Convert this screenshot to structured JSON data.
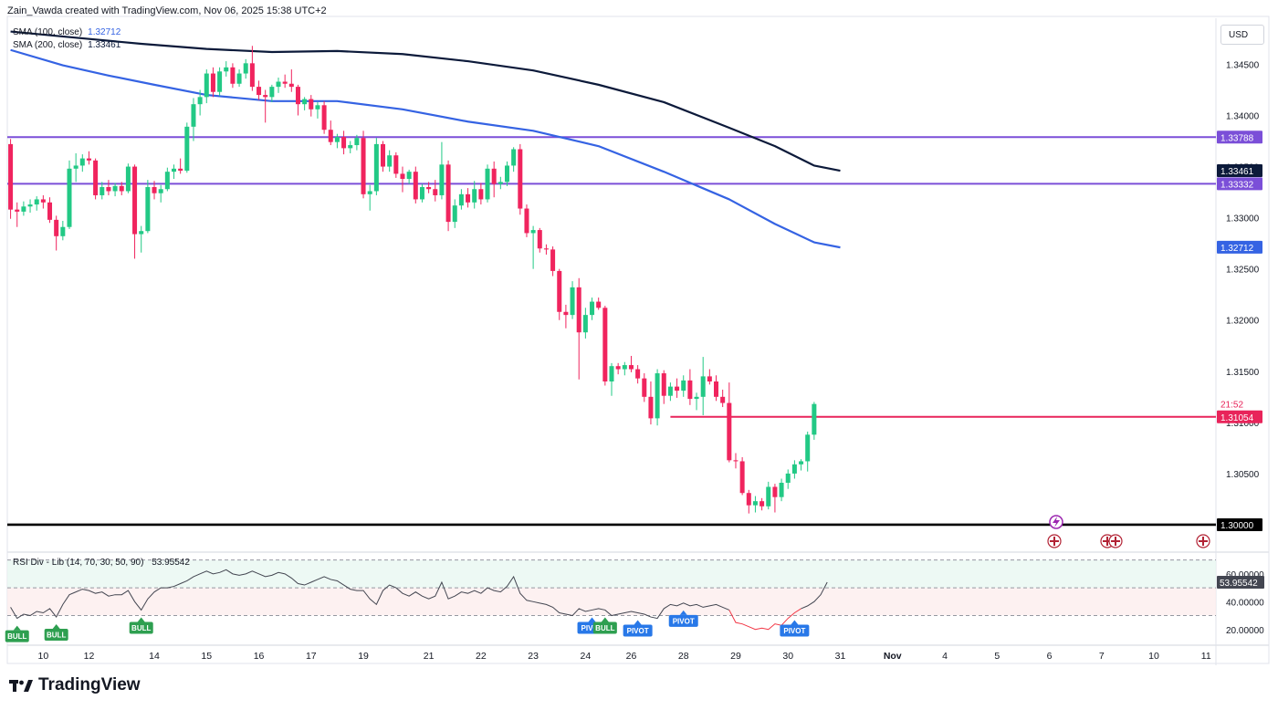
{
  "header": {
    "title": "Zain_Vawda created with TradingView.com, Nov 06, 2025 15:38 UTC+2"
  },
  "legend": {
    "sma100": {
      "label": "SMA (100, close)",
      "value": "1.32712"
    },
    "sma200": {
      "label": "SMA (200, close)",
      "value": "1.33461"
    },
    "rsi": {
      "label": "RSI Div - Lib (14, 70, 30, 50, 90)",
      "value": "53.95542"
    }
  },
  "currency": "USD",
  "logo": {
    "text": "TradingView"
  },
  "colors": {
    "up": "#22c985",
    "down": "#f0245e",
    "sma100": "#3563e3",
    "sma200": "#0c1a3a",
    "resistance": "#7b4fd8",
    "support": "#000000",
    "current_level": "#e8245a",
    "rsi_line": "#434651",
    "rsi_bear": "#f23645",
    "bull_label": "#2e9f50",
    "pivot_label": "#2878e8"
  },
  "chart_data": [
    {
      "type": "candlestick",
      "title": "GBP/USD",
      "ylim": [
        1.2975,
        1.3495
      ],
      "y_ticks": [
        "1.34500",
        "1.34000",
        "1.33500",
        "1.33000",
        "1.32500",
        "1.32000",
        "1.31500",
        "1.31000",
        "1.30500",
        "1.30000"
      ],
      "y_tick_values": [
        1.345,
        1.34,
        1.335,
        1.33,
        1.325,
        1.32,
        1.315,
        1.31,
        1.305,
        1.3
      ],
      "x_ticks": [
        "10",
        "12",
        "14",
        "15",
        "16",
        "17",
        "19",
        "21",
        "22",
        "23",
        "24",
        "26",
        "28",
        "29",
        "30",
        "31",
        "Nov",
        "4",
        "5",
        "6",
        "7",
        "10",
        "11"
      ],
      "x_tick_index": [
        5,
        12,
        22,
        30,
        38,
        46,
        54,
        64,
        72,
        80,
        88,
        95,
        103,
        111,
        119,
        127,
        135,
        143,
        151,
        159,
        167,
        175,
        183
      ],
      "bars_visible": 163,
      "x_slots": 185,
      "candles": [
        [
          1.3372,
          1.3377,
          1.3299,
          1.3308
        ],
        [
          1.3308,
          1.3315,
          1.3291,
          1.3306
        ],
        [
          1.3306,
          1.3316,
          1.3302,
          1.3311
        ],
        [
          1.3311,
          1.3318,
          1.3305,
          1.3313
        ],
        [
          1.3313,
          1.3321,
          1.3307,
          1.3318
        ],
        [
          1.3318,
          1.3322,
          1.3309,
          1.3315
        ],
        [
          1.3315,
          1.332,
          1.3295,
          1.3298
        ],
        [
          1.3298,
          1.3302,
          1.3268,
          1.3282
        ],
        [
          1.3282,
          1.3297,
          1.3278,
          1.3291
        ],
        [
          1.3291,
          1.3356,
          1.3289,
          1.3348
        ],
        [
          1.3348,
          1.3363,
          1.3335,
          1.3351
        ],
        [
          1.3351,
          1.3362,
          1.3345,
          1.3358
        ],
        [
          1.3358,
          1.3365,
          1.3352,
          1.3356
        ],
        [
          1.3356,
          1.3358,
          1.3318,
          1.3322
        ],
        [
          1.3322,
          1.3335,
          1.3318,
          1.333
        ],
        [
          1.333,
          1.3337,
          1.3322,
          1.3326
        ],
        [
          1.3326,
          1.3334,
          1.3321,
          1.3331
        ],
        [
          1.3331,
          1.3335,
          1.3322,
          1.3326
        ],
        [
          1.3326,
          1.3353,
          1.3324,
          1.335
        ],
        [
          1.335,
          1.3352,
          1.326,
          1.3284
        ],
        [
          1.3284,
          1.3292,
          1.3266,
          1.3287
        ],
        [
          1.3287,
          1.3337,
          1.3285,
          1.333
        ],
        [
          1.333,
          1.3336,
          1.3318,
          1.3324
        ],
        [
          1.3324,
          1.3332,
          1.3315,
          1.3328
        ],
        [
          1.3328,
          1.3349,
          1.3326,
          1.3345
        ],
        [
          1.3345,
          1.3352,
          1.3338,
          1.3348
        ],
        [
          1.3348,
          1.3358,
          1.3343,
          1.3346
        ],
        [
          1.3346,
          1.3393,
          1.3344,
          1.3389
        ],
        [
          1.3389,
          1.3417,
          1.3375,
          1.3411
        ],
        [
          1.3411,
          1.3425,
          1.34,
          1.3418
        ],
        [
          1.3418,
          1.3445,
          1.3412,
          1.3441
        ],
        [
          1.3441,
          1.3447,
          1.3418,
          1.3423
        ],
        [
          1.3423,
          1.3447,
          1.3419,
          1.3443
        ],
        [
          1.3443,
          1.3453,
          1.3438,
          1.3447
        ],
        [
          1.3447,
          1.3451,
          1.3427,
          1.3431
        ],
        [
          1.3431,
          1.3445,
          1.3428,
          1.3441
        ],
        [
          1.3441,
          1.3455,
          1.3436,
          1.3451
        ],
        [
          1.3451,
          1.3468,
          1.3424,
          1.3428
        ],
        [
          1.3428,
          1.3434,
          1.3415,
          1.342
        ],
        [
          1.342,
          1.3425,
          1.3393,
          1.3418
        ],
        [
          1.3418,
          1.343,
          1.3413,
          1.3428
        ],
        [
          1.3428,
          1.3437,
          1.3422,
          1.3433
        ],
        [
          1.3433,
          1.344,
          1.3427,
          1.3431
        ],
        [
          1.3431,
          1.3445,
          1.3423,
          1.3428
        ],
        [
          1.3428,
          1.343,
          1.34,
          1.3411
        ],
        [
          1.3411,
          1.3418,
          1.3405,
          1.3416
        ],
        [
          1.3416,
          1.342,
          1.3399,
          1.3406
        ],
        [
          1.3406,
          1.3413,
          1.3397,
          1.341
        ],
        [
          1.341,
          1.3414,
          1.3382,
          1.3386
        ],
        [
          1.3386,
          1.3395,
          1.3371,
          1.3374
        ],
        [
          1.3374,
          1.3382,
          1.3368,
          1.3379
        ],
        [
          1.3379,
          1.3385,
          1.3362,
          1.3368
        ],
        [
          1.3368,
          1.3375,
          1.3363,
          1.3371
        ],
        [
          1.3371,
          1.3381,
          1.3366,
          1.3378
        ],
        [
          1.3378,
          1.3385,
          1.3319,
          1.3323
        ],
        [
          1.3323,
          1.3332,
          1.3307,
          1.3326
        ],
        [
          1.3326,
          1.3378,
          1.3322,
          1.3372
        ],
        [
          1.3372,
          1.3375,
          1.3345,
          1.335
        ],
        [
          1.335,
          1.3366,
          1.3345,
          1.3361
        ],
        [
          1.3361,
          1.3364,
          1.3339,
          1.3343
        ],
        [
          1.3343,
          1.335,
          1.3325,
          1.3338
        ],
        [
          1.3338,
          1.3347,
          1.3333,
          1.3345
        ],
        [
          1.3345,
          1.335,
          1.3314,
          1.3318
        ],
        [
          1.3318,
          1.3333,
          1.3315,
          1.333
        ],
        [
          1.333,
          1.3335,
          1.3324,
          1.3328
        ],
        [
          1.3328,
          1.3337,
          1.3316,
          1.3322
        ],
        [
          1.3322,
          1.3374,
          1.3318,
          1.3352
        ],
        [
          1.3352,
          1.3356,
          1.3287,
          1.3296
        ],
        [
          1.3296,
          1.3318,
          1.329,
          1.3312
        ],
        [
          1.3312,
          1.3328,
          1.3308,
          1.3323
        ],
        [
          1.3323,
          1.3329,
          1.331,
          1.3315
        ],
        [
          1.3315,
          1.3336,
          1.3309,
          1.3328
        ],
        [
          1.3328,
          1.3334,
          1.3313,
          1.3318
        ],
        [
          1.3318,
          1.3352,
          1.3315,
          1.3348
        ],
        [
          1.3348,
          1.3355,
          1.332,
          1.3333
        ],
        [
          1.3333,
          1.334,
          1.3328,
          1.3335
        ],
        [
          1.3335,
          1.3355,
          1.3331,
          1.3351
        ],
        [
          1.3351,
          1.3369,
          1.3345,
          1.3367
        ],
        [
          1.3367,
          1.3372,
          1.3303,
          1.3309
        ],
        [
          1.3309,
          1.3313,
          1.3281,
          1.3285
        ],
        [
          1.3285,
          1.3292,
          1.325,
          1.3288
        ],
        [
          1.3288,
          1.329,
          1.3266,
          1.327
        ],
        [
          1.327,
          1.3274,
          1.3264,
          1.3269
        ],
        [
          1.3269,
          1.3272,
          1.3243,
          1.3248
        ],
        [
          1.3248,
          1.325,
          1.32,
          1.3208
        ],
        [
          1.3208,
          1.3215,
          1.3192,
          1.3205
        ],
        [
          1.3205,
          1.3238,
          1.3201,
          1.3232
        ],
        [
          1.3232,
          1.3241,
          1.3142,
          1.3188
        ],
        [
          1.3188,
          1.3212,
          1.3182,
          1.3205
        ],
        [
          1.3205,
          1.3222,
          1.32,
          1.3218
        ],
        [
          1.3218,
          1.3222,
          1.321,
          1.3212
        ],
        [
          1.3212,
          1.3214,
          1.3136,
          1.314
        ],
        [
          1.314,
          1.3158,
          1.3126,
          1.3155
        ],
        [
          1.3155,
          1.3158,
          1.3147,
          1.3152
        ],
        [
          1.3152,
          1.3159,
          1.3146,
          1.3156
        ],
        [
          1.3156,
          1.3165,
          1.3149,
          1.3152
        ],
        [
          1.3152,
          1.3156,
          1.3138,
          1.3143
        ],
        [
          1.3143,
          1.3148,
          1.312,
          1.3125
        ],
        [
          1.3125,
          1.314,
          1.3098,
          1.3104
        ],
        [
          1.3104,
          1.3152,
          1.3097,
          1.3148
        ],
        [
          1.3148,
          1.3151,
          1.3118,
          1.3126
        ],
        [
          1.3126,
          1.3139,
          1.3121,
          1.3135
        ],
        [
          1.3135,
          1.3143,
          1.3124,
          1.3131
        ],
        [
          1.3131,
          1.3146,
          1.3125,
          1.3141
        ],
        [
          1.3141,
          1.3152,
          1.3117,
          1.3123
        ],
        [
          1.3123,
          1.3129,
          1.3112,
          1.3125
        ],
        [
          1.3125,
          1.3164,
          1.3107,
          1.3145
        ],
        [
          1.3145,
          1.3152,
          1.3137,
          1.314
        ],
        [
          1.314,
          1.3146,
          1.3121,
          1.3125
        ],
        [
          1.3125,
          1.3132,
          1.3115,
          1.3119
        ],
        [
          1.3119,
          1.3139,
          1.3061,
          1.3063
        ],
        [
          1.3063,
          1.307,
          1.3055,
          1.3062
        ],
        [
          1.3062,
          1.3066,
          1.3029,
          1.3031
        ],
        [
          1.3031,
          1.3034,
          1.3011,
          1.3019
        ],
        [
          1.3019,
          1.3028,
          1.3012,
          1.3023
        ],
        [
          1.3023,
          1.3026,
          1.3014,
          1.3018
        ],
        [
          1.3018,
          1.3042,
          1.3015,
          1.3037
        ],
        [
          1.3037,
          1.304,
          1.3012,
          1.3027
        ],
        [
          1.3027,
          1.3045,
          1.3023,
          1.3041
        ],
        [
          1.3041,
          1.3054,
          1.3035,
          1.305
        ],
        [
          1.305,
          1.3063,
          1.3045,
          1.3059
        ],
        [
          1.3059,
          1.3064,
          1.3053,
          1.3062
        ],
        [
          1.3062,
          1.3091,
          1.3052,
          1.3088
        ],
        [
          1.3088,
          1.312,
          1.3083,
          1.3118
        ]
      ],
      "overlays": {
        "sma200": {
          "name": "SMA (200, close)",
          "points": [
            [
              0,
              1.3482
            ],
            [
              10,
              1.3476
            ],
            [
              20,
              1.347
            ],
            [
              30,
              1.3465
            ],
            [
              40,
              1.3462
            ],
            [
              50,
              1.3463
            ],
            [
              60,
              1.346
            ],
            [
              70,
              1.3453
            ],
            [
              80,
              1.3444
            ],
            [
              90,
              1.343
            ],
            [
              100,
              1.3413
            ],
            [
              110,
              1.3388
            ],
            [
              117,
              1.337
            ],
            [
              123,
              1.3351
            ],
            [
              127,
              1.3346
            ]
          ]
        },
        "sma100": {
          "name": "SMA (100, close)",
          "points": [
            [
              0,
              1.3464
            ],
            [
              8,
              1.3449
            ],
            [
              15,
              1.3439
            ],
            [
              22,
              1.343
            ],
            [
              30,
              1.342
            ],
            [
              40,
              1.3414
            ],
            [
              50,
              1.3414
            ],
            [
              60,
              1.3406
            ],
            [
              70,
              1.3394
            ],
            [
              80,
              1.3385
            ],
            [
              90,
              1.337
            ],
            [
              100,
              1.3345
            ],
            [
              110,
              1.3318
            ],
            [
              117,
              1.3294
            ],
            [
              123,
              1.3276
            ],
            [
              127,
              1.3271
            ]
          ]
        },
        "lines": [
          {
            "name": "resistance-upper",
            "value": 1.33788,
            "label": "1.33788"
          },
          {
            "name": "resistance-lower",
            "value": 1.33332,
            "label": "1.33332"
          },
          {
            "name": "support",
            "value": 1.3,
            "label": "1.30000"
          },
          {
            "name": "current-level",
            "value": 1.31054,
            "label": "1.31054",
            "from_index": 101
          }
        ]
      },
      "price_labels": [
        {
          "name": "sma200-price-label",
          "value": 1.33461,
          "text": "1.33461"
        },
        {
          "name": "sma100-price-label",
          "value": 1.32712,
          "text": "1.32712"
        },
        {
          "name": "countdown-label",
          "value": 1.3118,
          "text": "21:52"
        }
      ]
    },
    {
      "type": "line",
      "title": "RSI Div - Lib (14, 70, 30, 50, 90)",
      "ylim": [
        10,
        75
      ],
      "y_ticks": [
        "60.00000",
        "40.00000",
        "20.00000"
      ],
      "y_tick_values": [
        60,
        40,
        20
      ],
      "levels": [
        70,
        50,
        30
      ],
      "current": {
        "value": 53.95542,
        "text": "53.95542"
      },
      "values": [
        36,
        28,
        31,
        30,
        33,
        32,
        35,
        29,
        38,
        45,
        47,
        49,
        48,
        46,
        47,
        44,
        45,
        45,
        48,
        40,
        34,
        42,
        47,
        50,
        50,
        51,
        53,
        55,
        58,
        60,
        62,
        60,
        61,
        63,
        60,
        59,
        60,
        62,
        60,
        58,
        59,
        61,
        60,
        57,
        53,
        52,
        54,
        56,
        58,
        56,
        55,
        52,
        49,
        48,
        48,
        42,
        38,
        48,
        52,
        50,
        46,
        44,
        47,
        44,
        42,
        44,
        54,
        42,
        44,
        47,
        46,
        48,
        46,
        50,
        48,
        47,
        51,
        58,
        46,
        41,
        40,
        39,
        38,
        36,
        32,
        31,
        30,
        35,
        33,
        34,
        35,
        34,
        30,
        31,
        32,
        33,
        32,
        31,
        29,
        28,
        35,
        38,
        37,
        39,
        37,
        38,
        36,
        37,
        38,
        36,
        34,
        25,
        24,
        22,
        20,
        21,
        20,
        24,
        23,
        28,
        32,
        35,
        37,
        40,
        45,
        54
      ],
      "bearish_range": [
        110,
        121
      ],
      "markers": [
        {
          "label": "BULL",
          "index": 1,
          "kind": "bull"
        },
        {
          "label": "BULL",
          "index": 7,
          "kind": "bull"
        },
        {
          "label": "BULL",
          "index": 20,
          "kind": "bull"
        },
        {
          "label": "PIVOT",
          "index": 89,
          "kind": "pivot"
        },
        {
          "label": "BULL",
          "index": 91,
          "kind": "bull"
        },
        {
          "label": "PIVOT",
          "index": 96,
          "kind": "pivot"
        },
        {
          "label": "PIVOT",
          "index": 103,
          "kind": "pivot"
        },
        {
          "label": "PIVOT",
          "index": 120,
          "kind": "pivot"
        }
      ]
    }
  ]
}
